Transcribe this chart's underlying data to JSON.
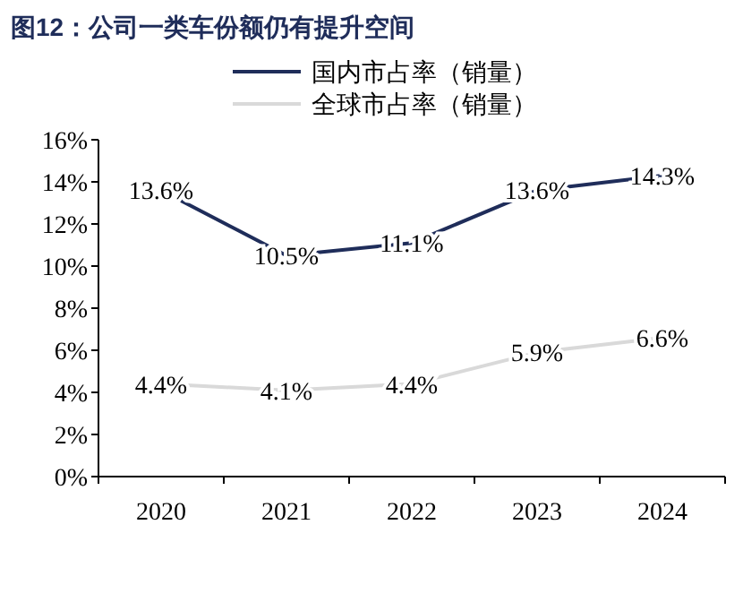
{
  "chart_data": {
    "type": "line",
    "title": "图12：公司一类车份额仍有提升空间",
    "categories": [
      "2020",
      "2021",
      "2022",
      "2023",
      "2024"
    ],
    "series": [
      {
        "name": "国内市占率（销量）",
        "color": "#1f2d5a",
        "values": [
          13.6,
          10.5,
          11.1,
          13.6,
          14.3
        ],
        "value_labels": [
          "13.6%",
          "10.5%",
          "11.1%",
          "13.6%",
          "14.3%"
        ]
      },
      {
        "name": "全球市占率（销量）",
        "color": "#d9d9d9",
        "values": [
          4.4,
          4.1,
          4.4,
          5.9,
          6.6
        ],
        "value_labels": [
          "4.4%",
          "4.1%",
          "4.4%",
          "5.9%",
          "6.6%"
        ]
      }
    ],
    "ylim": [
      0,
      16
    ],
    "yticks": [
      {
        "value": 0,
        "label": "0%"
      },
      {
        "value": 2,
        "label": "2%"
      },
      {
        "value": 4,
        "label": "4%"
      },
      {
        "value": 6,
        "label": "6%"
      },
      {
        "value": 8,
        "label": "8%"
      },
      {
        "value": 10,
        "label": "10%"
      },
      {
        "value": 12,
        "label": "12%"
      },
      {
        "value": 14,
        "label": "14%"
      },
      {
        "value": 16,
        "label": "16%"
      }
    ],
    "legend": "top",
    "grid": false,
    "marker": "none",
    "line_style": "solid"
  }
}
